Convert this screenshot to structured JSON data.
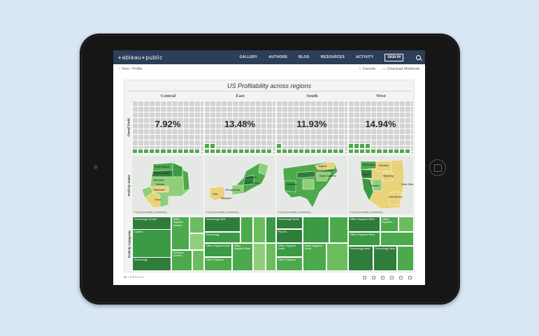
{
  "topnav": {
    "logo": "+ableau+public",
    "items": [
      "GALLERY",
      "AUTHORS",
      "BLOG",
      "RESOURCES",
      "ACTIVITY"
    ],
    "signin": "SIGN IN"
  },
  "subbar": {
    "back": "Yoko - Profile",
    "favorite": "Favorite",
    "download": "Download Workbook"
  },
  "viz": {
    "title": "US Profitability across regions",
    "row_labels": [
      "Overall Profit",
      "Profit by States",
      "Profit by Categories"
    ],
    "regions": [
      {
        "name": "Central",
        "profit": "7.92%",
        "fill_cells": 12
      },
      {
        "name": "East",
        "profit": "13.48%",
        "fill_cells": 14
      },
      {
        "name": "South",
        "profit": "11.93%",
        "fill_cells": 13
      },
      {
        "name": "West",
        "profit": "14.94%",
        "fill_cells": 15
      }
    ],
    "map_credit": "© OpenStreetMap contributors",
    "map_labels": {
      "central": [
        "North Dakota",
        "South Dakota",
        "Nebraska",
        "Kansas",
        "Oklahoma",
        "Texas",
        "Minnesota",
        "Iowa",
        "Missouri",
        "Illinois"
      ],
      "east": [
        "Pennsylvania",
        "New York",
        "Ohio",
        "New Jersey",
        "Connecticut",
        "Massachusetts",
        "Maryland",
        "Delaware"
      ],
      "south": [
        "Virginia",
        "North Carolina",
        "South Carolina",
        "Georgia",
        "Tennessee",
        "Alabama",
        "Louisiana"
      ],
      "west": [
        "Washington",
        "Oregon",
        "Montana",
        "Wyoming",
        "Idaho",
        "Nevada",
        "Utah",
        "California",
        "New Mexico",
        "Colorado",
        "Unite State"
      ]
    },
    "treemaps": {
      "central": [
        "Technology Central",
        "Office Supplies Central",
        "Copiers",
        "Furniture Central",
        "Technology"
      ],
      "east": [
        "Technology East",
        "Technology",
        "Office Supplies East",
        "Office Supplies East",
        "Office Supplies"
      ],
      "south": [
        "Technology South",
        "Phones",
        "Office Supplies South",
        "Office Supplies South",
        "Office Supplies"
      ],
      "west": [
        "Office Supplies West",
        "Office Supplies",
        "Office Supplies West",
        "Technology West",
        "Technology West",
        "Copiers",
        "Accessories"
      ]
    },
    "footer_logo": "⊞ + a b l e a u"
  },
  "colors": {
    "nav_bg": "#2c3e58",
    "green_dark": "#2f7d3b",
    "green_mid": "#4caa4c",
    "green_light": "#8fcf7a",
    "yellow": "#e9d27a"
  }
}
